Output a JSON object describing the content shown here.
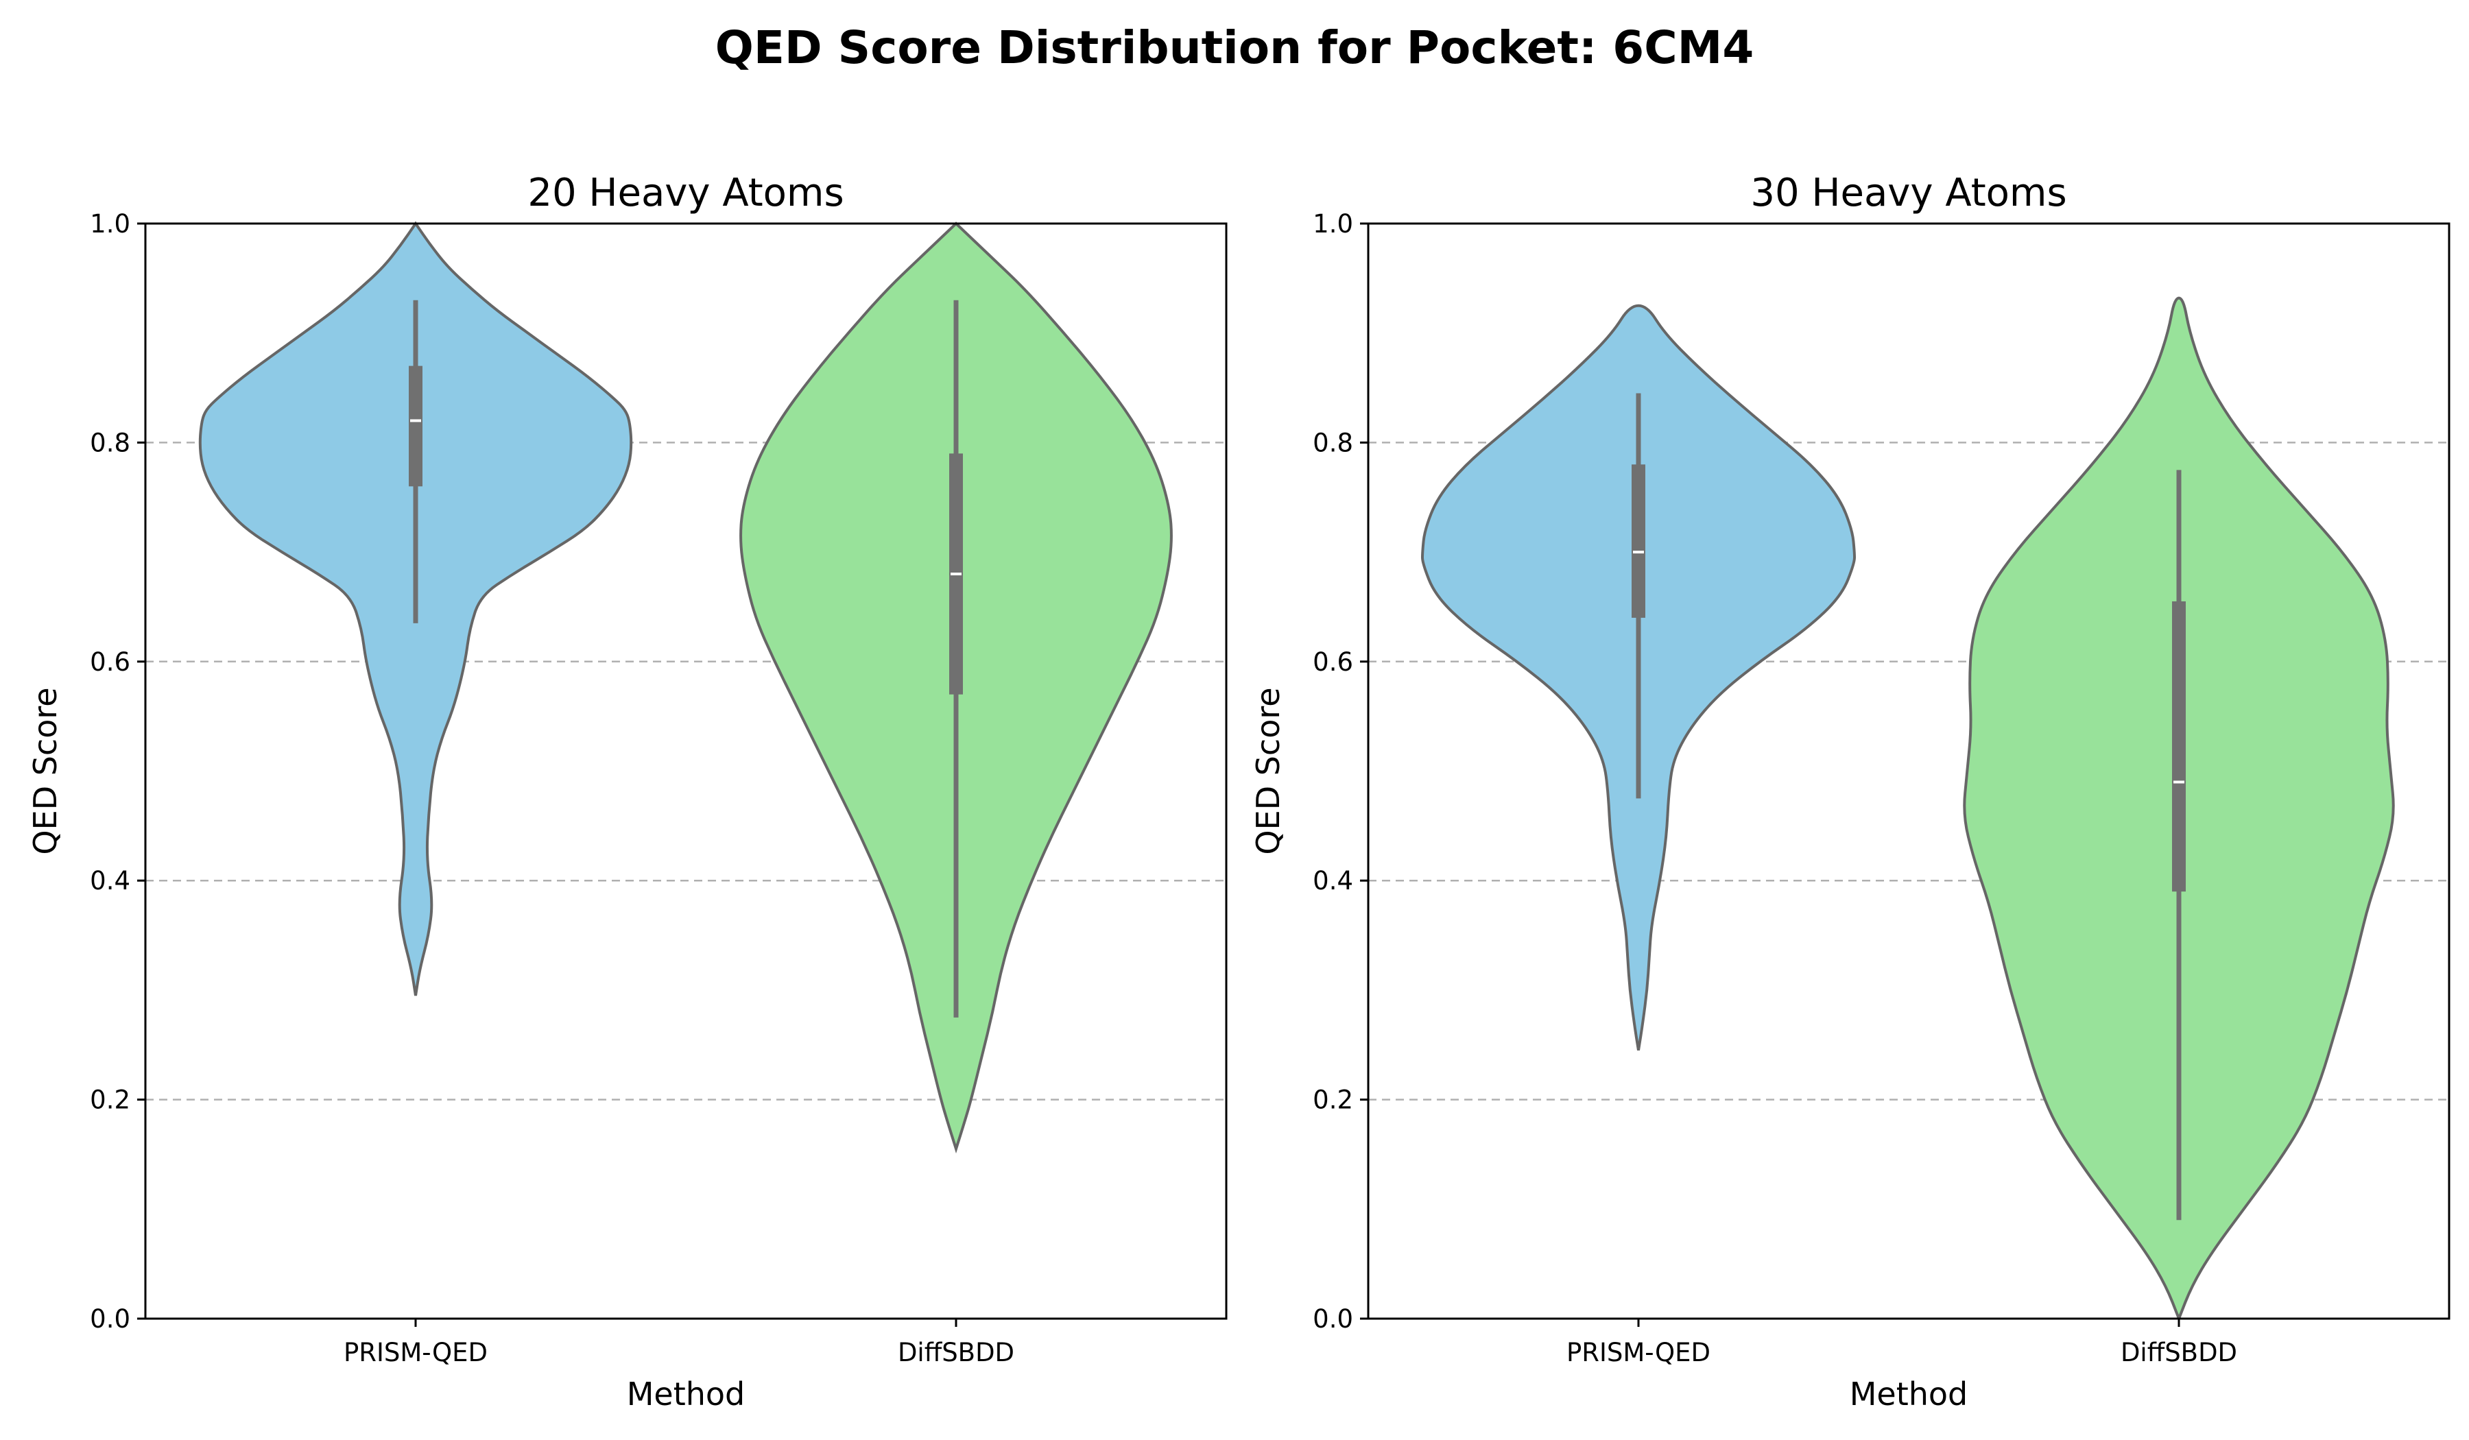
{
  "figure": {
    "title": "QED Score Distribution for Pocket: 6CM4"
  },
  "colors": {
    "PRISM-QED": "#8ecae6",
    "DiffSBDD": "#98e29a",
    "outline": "#666666",
    "box": "#707070"
  },
  "chart_data": [
    {
      "type": "violin",
      "title": "20 Heavy Atoms",
      "xlabel": "Method",
      "ylabel": "QED Score",
      "ylim": [
        0,
        1
      ],
      "yticks": [
        "0.0",
        "0.2",
        "0.4",
        "0.6",
        "0.8",
        "1.0"
      ],
      "grid": "y dashed",
      "categories": [
        "PRISM-QED",
        "DiffSBDD"
      ],
      "series": [
        {
          "name": "PRISM-QED",
          "whisker_low": 0.635,
          "q1": 0.76,
          "median": 0.82,
          "q3": 0.87,
          "whisker_high": 0.93,
          "density_y": [
            0.295,
            0.32,
            0.35,
            0.38,
            0.42,
            0.46,
            0.5,
            0.53,
            0.56,
            0.6,
            0.63,
            0.66,
            0.68,
            0.7,
            0.72,
            0.74,
            0.76,
            0.78,
            0.8,
            0.82,
            0.83,
            0.84,
            0.86,
            0.88,
            0.9,
            0.92,
            0.94,
            0.96,
            0.98,
            1.0
          ],
          "density_w": [
            0.0,
            0.02,
            0.06,
            0.08,
            0.05,
            0.06,
            0.08,
            0.12,
            0.18,
            0.23,
            0.25,
            0.3,
            0.45,
            0.62,
            0.78,
            0.88,
            0.95,
            0.99,
            1.0,
            0.99,
            0.97,
            0.92,
            0.8,
            0.66,
            0.52,
            0.38,
            0.26,
            0.15,
            0.07,
            0.0
          ]
        },
        {
          "name": "DiffSBDD",
          "whisker_low": 0.275,
          "q1": 0.57,
          "median": 0.68,
          "q3": 0.79,
          "whisker_high": 0.93,
          "density_y": [
            0.155,
            0.18,
            0.2,
            0.24,
            0.28,
            0.32,
            0.36,
            0.4,
            0.44,
            0.48,
            0.52,
            0.56,
            0.6,
            0.64,
            0.68,
            0.71,
            0.74,
            0.78,
            0.82,
            0.86,
            0.9,
            0.94,
            0.97,
            1.0
          ],
          "density_w": [
            0.0,
            0.04,
            0.07,
            0.12,
            0.17,
            0.21,
            0.27,
            0.35,
            0.44,
            0.54,
            0.64,
            0.74,
            0.84,
            0.93,
            0.98,
            1.0,
            0.99,
            0.93,
            0.82,
            0.67,
            0.5,
            0.32,
            0.16,
            0.0
          ]
        }
      ]
    },
    {
      "type": "violin",
      "title": "30 Heavy Atoms",
      "xlabel": "Method",
      "ylabel": "QED Score",
      "ylim": [
        0,
        1
      ],
      "yticks": [
        "0.0",
        "0.2",
        "0.4",
        "0.6",
        "0.8",
        "1.0"
      ],
      "grid": "y dashed",
      "categories": [
        "PRISM-QED",
        "DiffSBDD"
      ],
      "series": [
        {
          "name": "PRISM-QED",
          "whisker_low": 0.475,
          "q1": 0.64,
          "median": 0.7,
          "q3": 0.78,
          "whisker_high": 0.845,
          "density_y": [
            0.245,
            0.27,
            0.3,
            0.33,
            0.36,
            0.4,
            0.44,
            0.48,
            0.51,
            0.54,
            0.57,
            0.6,
            0.63,
            0.66,
            0.69,
            0.7,
            0.72,
            0.75,
            0.78,
            0.81,
            0.84,
            0.87,
            0.9,
            0.925
          ],
          "density_w": [
            0.0,
            0.02,
            0.04,
            0.05,
            0.06,
            0.1,
            0.13,
            0.14,
            0.16,
            0.24,
            0.37,
            0.56,
            0.78,
            0.94,
            1.0,
            1.0,
            0.99,
            0.93,
            0.8,
            0.62,
            0.44,
            0.27,
            0.12,
            0.04
          ]
        },
        {
          "name": "DiffSBDD",
          "whisker_low": 0.09,
          "q1": 0.39,
          "median": 0.49,
          "q3": 0.655,
          "whisker_high": 0.775,
          "density_y": [
            0.0,
            0.03,
            0.06,
            0.1,
            0.14,
            0.18,
            0.22,
            0.26,
            0.3,
            0.34,
            0.38,
            0.42,
            0.46,
            0.5,
            0.54,
            0.58,
            0.62,
            0.66,
            0.7,
            0.74,
            0.78,
            0.82,
            0.86,
            0.9,
            0.932
          ],
          "density_w": [
            0.0,
            0.06,
            0.15,
            0.3,
            0.45,
            0.58,
            0.66,
            0.72,
            0.78,
            0.83,
            0.88,
            0.95,
            1.0,
            0.98,
            0.96,
            0.97,
            0.96,
            0.9,
            0.76,
            0.58,
            0.4,
            0.24,
            0.12,
            0.05,
            0.02
          ]
        }
      ]
    }
  ]
}
